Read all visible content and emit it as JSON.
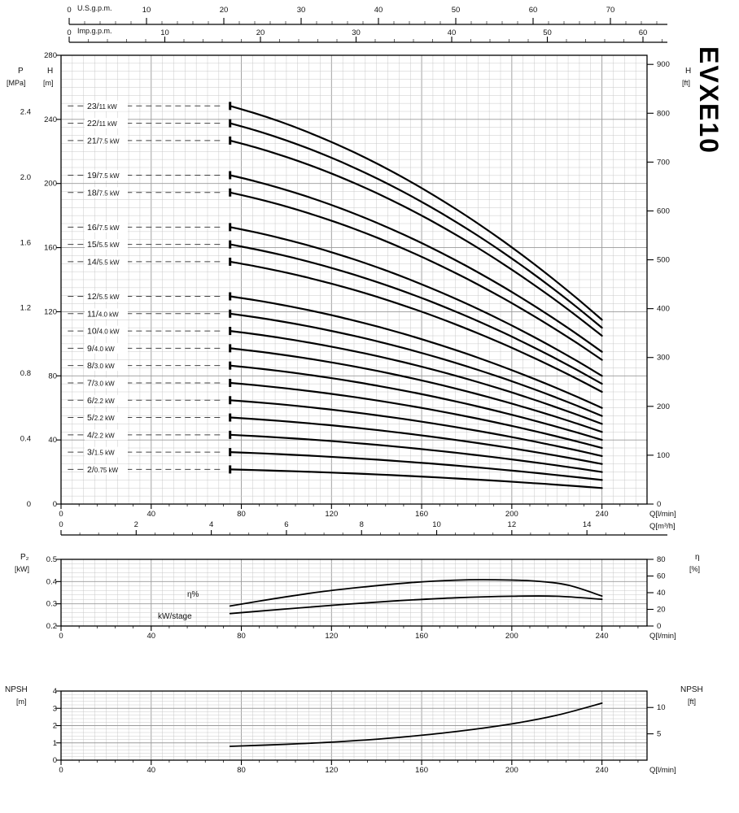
{
  "title": "EVXE10",
  "colors": {
    "ink": "#111111",
    "grid_minor": "#c9c9c9",
    "grid_major": "#9a9a9a",
    "curve": "#000000",
    "leader": "#444444"
  },
  "labels": {
    "title": "EVXE10",
    "us_gpm": "U.S.g.p.m.",
    "imp_gpm": "Imp.g.p.m.",
    "p": "P",
    "p_unit": "[MPa]",
    "h": "H",
    "h_unit_m": "[m]",
    "h_unit_ft": "[ft]",
    "p2": "P₂",
    "p2_unit": "[kW]",
    "eta": "η",
    "eta_unit": "[%]",
    "eta_curve": "η%",
    "kw_curve": "kW/stage",
    "npsh": "NPSH",
    "npsh_unit_m": "[m]",
    "npsh_unit_ft": "[ft]"
  },
  "top_axes": {
    "us": {
      "label": "U.S.g.p.m.",
      "ticks": [
        0,
        10,
        20,
        30,
        40,
        50,
        60,
        70
      ]
    },
    "imp": {
      "label": "Imp.g.p.m.",
      "ticks": [
        0,
        10,
        20,
        30,
        40,
        50,
        60
      ]
    }
  },
  "chart_data": [
    {
      "type": "line",
      "name": "head-curves",
      "title": "H-Q curves per number of stages, EVXE10",
      "xlabel": "Q[l/min]",
      "x_ticks": [
        0,
        40,
        80,
        120,
        160,
        200,
        240
      ],
      "x_max": 260,
      "x2label": "Q[m³/h]",
      "x2_ticks": [
        0,
        2,
        4,
        6,
        8,
        10,
        12,
        14
      ],
      "p_ticks": [
        "0",
        "0.4",
        "0.8",
        "1.2",
        "1.6",
        "2.0",
        "2.4"
      ],
      "m_per_mpa": 102,
      "h_ticks": [
        0,
        40,
        80,
        120,
        160,
        200,
        240,
        280
      ],
      "h_max": 280,
      "ft_ticks": [
        0,
        100,
        200,
        300,
        400,
        500,
        600,
        700,
        800,
        900
      ],
      "m_per_ft": 0.3048,
      "q_start": 75,
      "q_end": 240,
      "series": [
        {
          "label": "23/11 kW",
          "stage": "23",
          "power": "11 kW",
          "h_start": 248.4,
          "h_end": 115
        },
        {
          "label": "22/11 kW",
          "stage": "22",
          "power": "11 kW",
          "h_start": 237.6,
          "h_end": 110
        },
        {
          "label": "21/7.5 kW",
          "stage": "21",
          "power": "7.5 kW",
          "h_start": 226.8,
          "h_end": 105
        },
        {
          "label": "19/7.5 kW",
          "stage": "19",
          "power": "7.5 kW",
          "h_start": 205.2,
          "h_end": 95
        },
        {
          "label": "18/7.5 kW",
          "stage": "18",
          "power": "7.5 kW",
          "h_start": 194.4,
          "h_end": 90
        },
        {
          "label": "16/7.5 kW",
          "stage": "16",
          "power": "7.5 kW",
          "h_start": 172.8,
          "h_end": 80
        },
        {
          "label": "15/5.5 kW",
          "stage": "15",
          "power": "5.5 kW",
          "h_start": 162.0,
          "h_end": 75
        },
        {
          "label": "14/5.5 kW",
          "stage": "14",
          "power": "5.5 kW",
          "h_start": 151.2,
          "h_end": 70
        },
        {
          "label": "12/5.5 kW",
          "stage": "12",
          "power": "5.5 kW",
          "h_start": 129.6,
          "h_end": 60
        },
        {
          "label": "11/4.0 kW",
          "stage": "11",
          "power": "4.0 kW",
          "h_start": 118.8,
          "h_end": 55
        },
        {
          "label": "10/4.0 kW",
          "stage": "10",
          "power": "4.0 kW",
          "h_start": 108.0,
          "h_end": 50
        },
        {
          "label": "9/4.0 kW",
          "stage": "9",
          "power": "4.0 kW",
          "h_start": 97.2,
          "h_end": 45
        },
        {
          "label": "8/3.0 kW",
          "stage": "8",
          "power": "3.0 kW",
          "h_start": 86.4,
          "h_end": 40
        },
        {
          "label": "7/3.0 kW",
          "stage": "7",
          "power": "3.0 kW",
          "h_start": 75.6,
          "h_end": 35
        },
        {
          "label": "6/2.2 kW",
          "stage": "6",
          "power": "2.2 kW",
          "h_start": 64.8,
          "h_end": 30
        },
        {
          "label": "5/2.2 kW",
          "stage": "5",
          "power": "2.2 kW",
          "h_start": 54.0,
          "h_end": 25
        },
        {
          "label": "4/2.2 kW",
          "stage": "4",
          "power": "2.2 kW",
          "h_start": 43.2,
          "h_end": 20
        },
        {
          "label": "3/1.5 kW",
          "stage": "3",
          "power": "1.5 kW",
          "h_start": 32.4,
          "h_end": 15
        },
        {
          "label": "2/0.75 kW",
          "stage": "2",
          "power": "0.75 kW",
          "h_start": 21.6,
          "h_end": 10
        }
      ]
    },
    {
      "type": "line",
      "name": "power-efficiency",
      "title": "Power per stage and efficiency",
      "xlabel": "Q[l/min]",
      "x_ticks": [
        0,
        40,
        80,
        120,
        160,
        200,
        240
      ],
      "p2_ticks": [
        "0.5",
        "0.4",
        "0.3",
        "0.2"
      ],
      "p2_min": 0.2,
      "p2_max": 0.5,
      "eta_ticks": [
        80,
        60,
        40,
        20,
        0
      ],
      "eta_max": 80,
      "series": [
        {
          "name": "η%",
          "axis": "eta",
          "points": [
            [
              75,
              24
            ],
            [
              95,
              33
            ],
            [
              115,
              41
            ],
            [
              135,
              47
            ],
            [
              155,
              52
            ],
            [
              175,
              55
            ],
            [
              192,
              55.5
            ],
            [
              210,
              54
            ],
            [
              225,
              49
            ],
            [
              240,
              36
            ]
          ]
        },
        {
          "name": "kW/stage",
          "axis": "p2",
          "points": [
            [
              75,
              0.256
            ],
            [
              100,
              0.277
            ],
            [
              125,
              0.297
            ],
            [
              150,
              0.314
            ],
            [
              175,
              0.327
            ],
            [
              200,
              0.334
            ],
            [
              220,
              0.334
            ],
            [
              240,
              0.32
            ]
          ]
        }
      ]
    },
    {
      "type": "line",
      "name": "npsh",
      "title": "NPSH required",
      "xlabel": "Q[l/min]",
      "x_ticks": [
        0,
        40,
        80,
        120,
        160,
        200,
        240
      ],
      "m_ticks": [
        4,
        3,
        2,
        1,
        0
      ],
      "m_max": 4,
      "ft_ticks": [
        10,
        5
      ],
      "m_per_ft": 0.3048,
      "points": [
        [
          75,
          0.8
        ],
        [
          100,
          0.92
        ],
        [
          125,
          1.08
        ],
        [
          150,
          1.32
        ],
        [
          175,
          1.65
        ],
        [
          200,
          2.1
        ],
        [
          220,
          2.6
        ],
        [
          240,
          3.3
        ]
      ]
    }
  ]
}
